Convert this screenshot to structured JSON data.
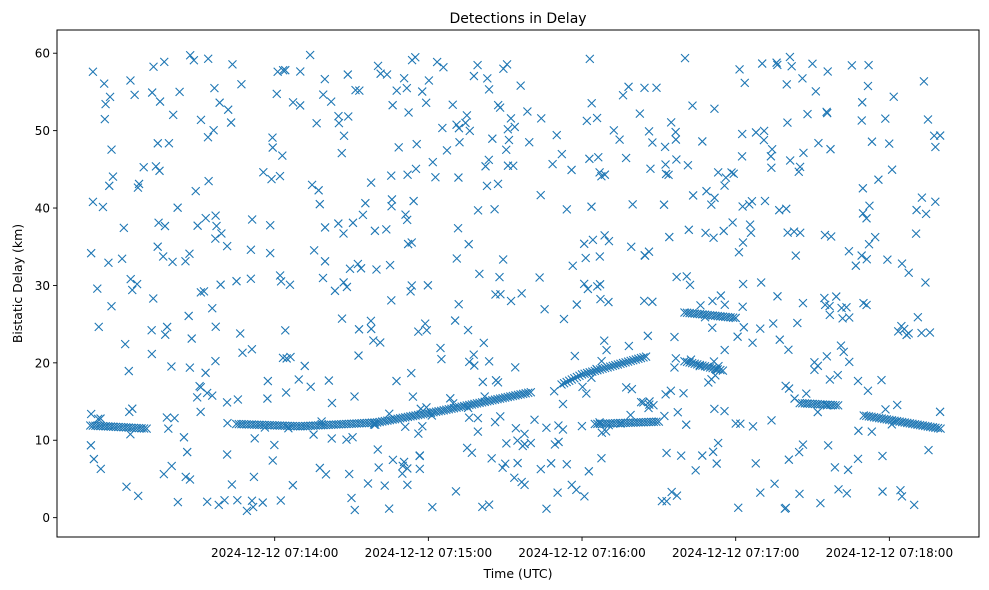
{
  "chart_data": {
    "type": "scatter",
    "title": "Detections in Delay",
    "xlabel": "Time (UTC)",
    "ylabel": "Bistatic Delay (km)",
    "xlim": [
      "2024-12-12 07:12:35",
      "2024-12-12 07:18:35"
    ],
    "ylim": [
      -2.5,
      63
    ],
    "grid": false,
    "legend": "none",
    "marker": "x",
    "marker_color": "#1f77b4",
    "x_ticks": [
      "2024-12-12 07:14:00",
      "2024-12-12 07:15:00",
      "2024-12-12 07:16:00",
      "2024-12-12 07:17:00",
      "2024-12-12 07:18:00"
    ],
    "y_ticks": [
      0,
      10,
      20,
      30,
      40,
      50,
      60
    ],
    "tracks": [
      {
        "name": "",
        "points": [
          [
            "2024-12-12 07:12:48",
            11.9
          ],
          [
            "2024-12-12 07:13:00",
            11.7
          ],
          [
            "2024-12-12 07:13:10",
            11.5
          ]
        ]
      },
      {
        "name": "",
        "points": [
          [
            "2024-12-12 07:13:45",
            12.1
          ],
          [
            "2024-12-12 07:14:10",
            11.8
          ],
          [
            "2024-12-12 07:14:40",
            12.3
          ],
          [
            "2024-12-12 07:15:05",
            13.8
          ],
          [
            "2024-12-12 07:15:40",
            16.2
          ]
        ]
      },
      {
        "name": "",
        "points": [
          [
            "2024-12-12 07:15:52",
            17.2
          ],
          [
            "2024-12-12 07:16:00",
            18.5
          ],
          [
            "2024-12-12 07:16:25",
            20.8
          ]
        ]
      },
      {
        "name": "",
        "points": [
          [
            "2024-12-12 07:16:05",
            12.1
          ],
          [
            "2024-12-12 07:16:30",
            12.4
          ]
        ]
      },
      {
        "name": "",
        "points": [
          [
            "2024-12-12 07:16:40",
            26.5
          ],
          [
            "2024-12-12 07:17:00",
            25.8
          ]
        ]
      },
      {
        "name": "",
        "points": [
          [
            "2024-12-12 07:16:40",
            20.2
          ],
          [
            "2024-12-12 07:16:55",
            19.0
          ]
        ]
      },
      {
        "name": "",
        "points": [
          [
            "2024-12-12 07:17:25",
            14.8
          ],
          [
            "2024-12-12 07:17:40",
            14.5
          ]
        ]
      },
      {
        "name": "",
        "points": [
          [
            "2024-12-12 07:17:50",
            13.2
          ],
          [
            "2024-12-12 07:18:20",
            11.5
          ]
        ]
      }
    ],
    "noise_points": 700,
    "noise_delay_range": [
      0.8,
      59.8
    ]
  }
}
